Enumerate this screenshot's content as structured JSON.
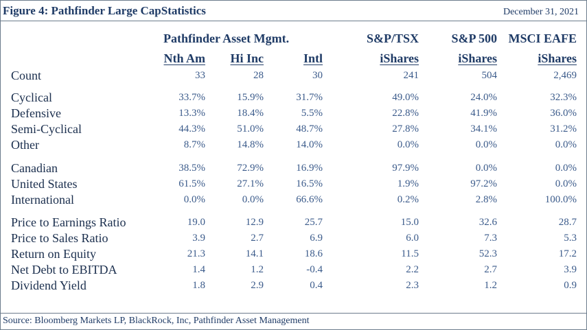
{
  "header": {
    "title": "Figure 4: Pathfinder Large CapStatistics",
    "date": "December 31, 2021"
  },
  "groups": {
    "pathfinder": "Pathfinder Asset Mgmt.",
    "tsx": "S&P/TSX",
    "sp500": "S&P 500",
    "eafe": "MSCI EAFE"
  },
  "columns": [
    "Nth Am",
    "Hi Inc",
    "Intl",
    "iShares",
    "iShares",
    "iShares"
  ],
  "rows": [
    {
      "label": "Count",
      "values": [
        "33",
        "28",
        "30",
        "241",
        "504",
        "2,469"
      ]
    },
    {
      "label": "Cyclical",
      "values": [
        "33.7%",
        "15.9%",
        "31.7%",
        "49.0%",
        "24.0%",
        "32.3%"
      ]
    },
    {
      "label": "Defensive",
      "values": [
        "13.3%",
        "18.4%",
        "5.5%",
        "22.8%",
        "41.9%",
        "36.0%"
      ]
    },
    {
      "label": "Semi-Cyclical",
      "values": [
        "44.3%",
        "51.0%",
        "48.7%",
        "27.8%",
        "34.1%",
        "31.2%"
      ]
    },
    {
      "label": "Other",
      "values": [
        "8.7%",
        "14.8%",
        "14.0%",
        "0.0%",
        "0.0%",
        "0.0%"
      ]
    },
    {
      "label": "Canadian",
      "values": [
        "38.5%",
        "72.9%",
        "16.9%",
        "97.9%",
        "0.0%",
        "0.0%"
      ]
    },
    {
      "label": "United States",
      "values": [
        "61.5%",
        "27.1%",
        "16.5%",
        "1.9%",
        "97.2%",
        "0.0%"
      ]
    },
    {
      "label": "International",
      "values": [
        "0.0%",
        "0.0%",
        "66.6%",
        "0.2%",
        "2.8%",
        "100.0%"
      ]
    },
    {
      "label": "Price to Earnings Ratio",
      "values": [
        "19.0",
        "12.9",
        "25.7",
        "15.0",
        "32.6",
        "28.7"
      ]
    },
    {
      "label": "Price to Sales Ratio",
      "values": [
        "3.9",
        "2.7",
        "6.9",
        "6.0",
        "7.3",
        "5.3"
      ]
    },
    {
      "label": "Return on Equity",
      "values": [
        "21.3",
        "14.1",
        "18.6",
        "11.5",
        "52.3",
        "17.2"
      ]
    },
    {
      "label": "Net Debt to EBITDA",
      "values": [
        "1.4",
        "1.2",
        "-0.4",
        "2.2",
        "2.7",
        "3.9"
      ]
    },
    {
      "label": "Dividend Yield",
      "values": [
        "1.8",
        "2.9",
        "0.4",
        "2.3",
        "1.2",
        "0.9"
      ]
    }
  ],
  "source": "Source: Bloomberg Markets LP, BlackRock, Inc, Pathfinder Asset Management"
}
